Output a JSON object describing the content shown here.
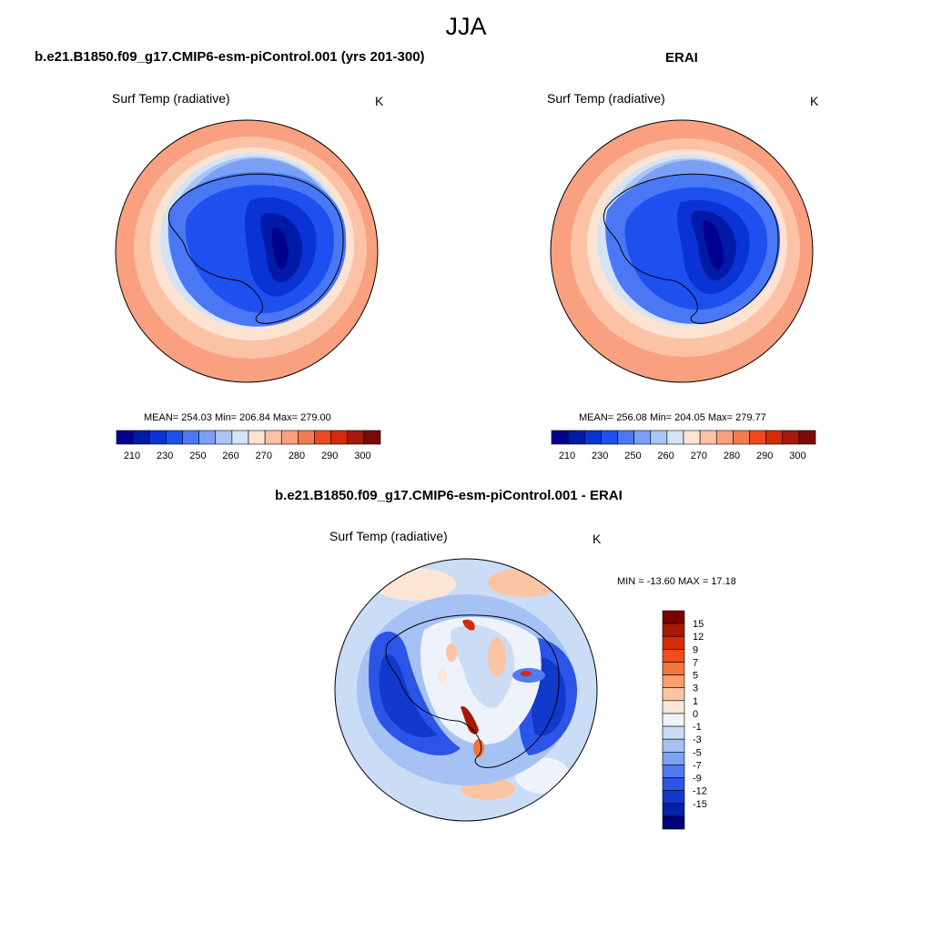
{
  "figure": {
    "title": "JJA",
    "panels": [
      {
        "title": "b.e21.B1850.f09_g17.CMIP6-esm-piControl.001 (yrs 201-300)",
        "variable": "Surf Temp (radiative)",
        "units": "K",
        "stats_text": "MEAN= 254.03  Min= 206.84  Max= 279.00"
      },
      {
        "title": "ERAI",
        "variable": "Surf Temp (radiative)",
        "units": "K",
        "stats_text": "MEAN= 256.08  Min= 204.05  Max= 279.77"
      },
      {
        "title": "b.e21.B1850.f09_g17.CMIP6-esm-piControl.001 - ERAI",
        "variable": "Surf Temp (radiative)",
        "units": "K",
        "stats_text": "MIN = -13.60 MAX =  17.18"
      }
    ]
  },
  "colors": {
    "abs_scale": [
      "#00008f",
      "#001aa8",
      "#0a33d6",
      "#1e50f0",
      "#4a78f5",
      "#7ba0f5",
      "#a9c4f5",
      "#d4e3f7",
      "#fde3d2",
      "#fbc2a6",
      "#f8a07f",
      "#f47a53",
      "#ef4a1e",
      "#d42a0a",
      "#a8180c",
      "#7a0a05"
    ],
    "diff_scale": [
      "#7a0000",
      "#a81a00",
      "#d42d05",
      "#f04d18",
      "#f5753e",
      "#f89e70",
      "#fbc5a4",
      "#fde6d6",
      "#eef3fb",
      "#cbdcf6",
      "#a6c2f4",
      "#7ba2f2",
      "#4f7cf0",
      "#2a55e6",
      "#1238cc",
      "#0620a6",
      "#00007a"
    ],
    "coastline": "#000000"
  },
  "chart_data": [
    {
      "type": "heatmap",
      "title": "b.e21.B1850.f09_g17.CMIP6-esm-piControl.001 (yrs 201-300)",
      "projection": "south polar stereographic",
      "variable": "Surf Temp (radiative)",
      "units": "K",
      "mean": 254.03,
      "min": 206.84,
      "max": 279.0,
      "colorbar_ticks": [
        210,
        230,
        250,
        260,
        270,
        280,
        290,
        300
      ],
      "colorbar_orientation": "horizontal"
    },
    {
      "type": "heatmap",
      "title": "ERAI",
      "projection": "south polar stereographic",
      "variable": "Surf Temp (radiative)",
      "units": "K",
      "mean": 256.08,
      "min": 204.05,
      "max": 279.77,
      "colorbar_ticks": [
        210,
        230,
        250,
        260,
        270,
        280,
        290,
        300
      ],
      "colorbar_orientation": "horizontal"
    },
    {
      "type": "heatmap",
      "title": "b.e21.B1850.f09_g17.CMIP6-esm-piControl.001 - ERAI",
      "projection": "south polar stereographic",
      "variable": "Surf Temp (radiative)",
      "units": "K",
      "min": -13.6,
      "max": 17.18,
      "colorbar_ticks": [
        15,
        12,
        9,
        7,
        5,
        3,
        1,
        0,
        -1,
        -3,
        -5,
        -7,
        -9,
        -12,
        -15
      ],
      "colorbar_orientation": "vertical"
    }
  ]
}
